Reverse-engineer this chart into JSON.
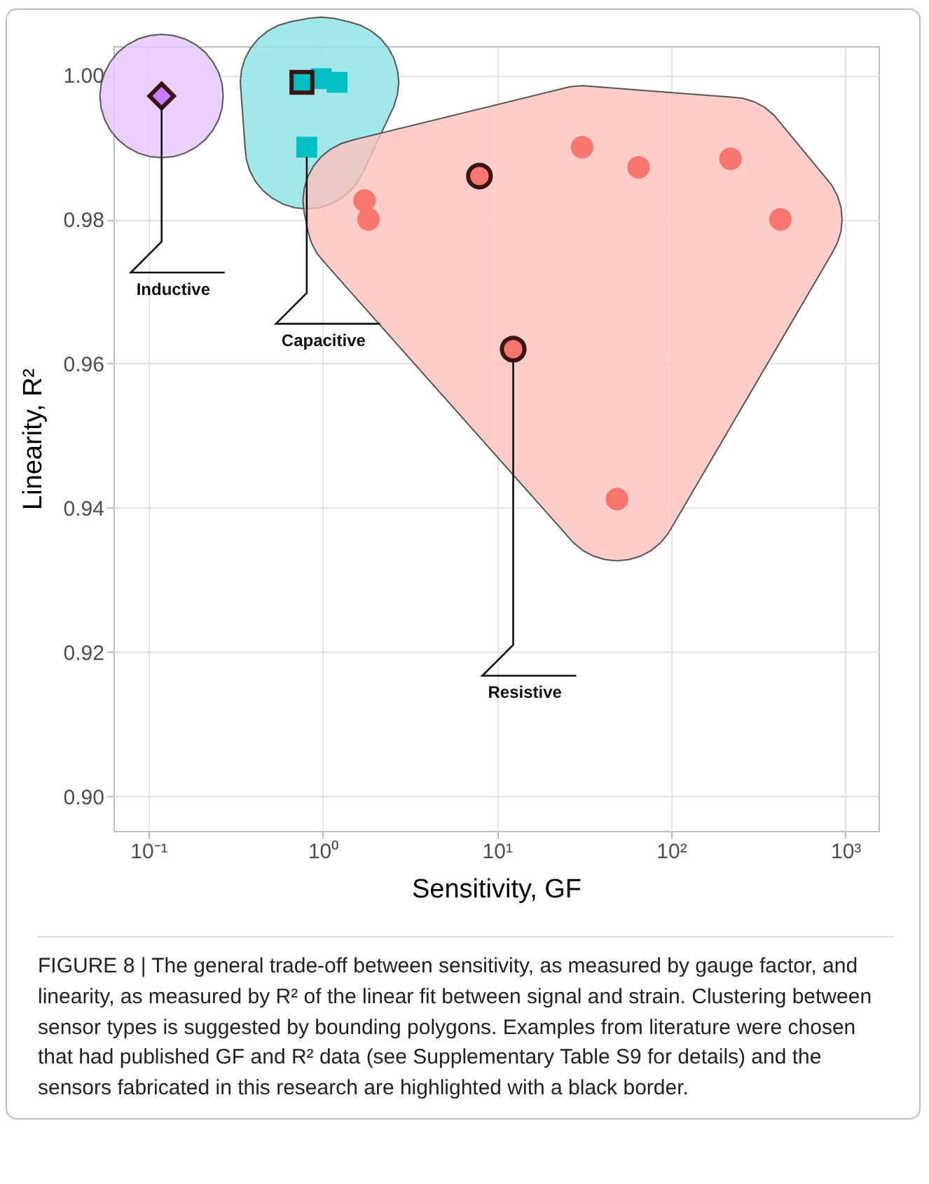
{
  "chart_data": {
    "type": "scatter",
    "xlabel": "Sensitivity, GF",
    "ylabel": "Linearity, R²",
    "log": "x",
    "grid": true,
    "xlim": [
      0.063,
      1550
    ],
    "ylim": [
      0.8952,
      1.004
    ],
    "xticks": [
      {
        "value": 0.1,
        "label": "10⁻¹"
      },
      {
        "value": 1,
        "label": "10⁰"
      },
      {
        "value": 10,
        "label": "10¹"
      },
      {
        "value": 100,
        "label": "10²"
      },
      {
        "value": 1000,
        "label": "10³"
      }
    ],
    "yticks": [
      {
        "value": 0.9,
        "label": "0.90"
      },
      {
        "value": 0.92,
        "label": "0.92"
      },
      {
        "value": 0.94,
        "label": "0.94"
      },
      {
        "value": 0.96,
        "label": "0.96"
      },
      {
        "value": 0.98,
        "label": "0.98"
      },
      {
        "value": 1,
        "label": "1.00"
      }
    ],
    "series": [
      {
        "color": "#c77cff",
        "marker": "diamond",
        "line_style": "solid",
        "x": [
          0.119
        ],
        "values": [
          0.9971
        ]
      },
      {
        "color": "#00bfc4",
        "marker": "square",
        "x": [
          0.98,
          1.21,
          0.81
        ],
        "values": [
          0.9995,
          0.999,
          0.99
        ]
      },
      {
        "color": "#00bfc4",
        "marker": "square",
        "line_style": "solid",
        "x": [
          0.76
        ],
        "values": [
          0.999
        ]
      },
      {
        "color": "#f8766d",
        "marker": "circle",
        "x": [
          1.74,
          1.83,
          30.8,
          65,
          219,
          424,
          48.9
        ],
        "values": [
          0.9826,
          0.98,
          0.99,
          0.9872,
          0.9884,
          0.98,
          0.9412
        ]
      },
      {
        "color": "#f8766d",
        "marker": "circle",
        "line_style": "solid",
        "x": [
          7.94,
          12.4
        ],
        "values": [
          0.986,
          0.962
        ]
      }
    ],
    "annotations": [
      {
        "text": "Inductive",
        "x": 0.119,
        "y": 0.9971
      },
      {
        "text": "Capacitive",
        "x": 0.81,
        "y": 0.99
      },
      {
        "text": "Resistive",
        "x": 12.4,
        "y": 0.962
      },
      "FIGURE 8 | The general trade-off between sensitivity, as measured by gauge factor, and linearity, as measured by R² of the linear fit between signal and strain. Clustering between sensor types is suggested by bounding polygons. Examples from literature were chosen that had published GF and R² data (see Supplementary Table S9 for details) and the sensors fabricated in this research are highlighted with a black border."
    ]
  }
}
